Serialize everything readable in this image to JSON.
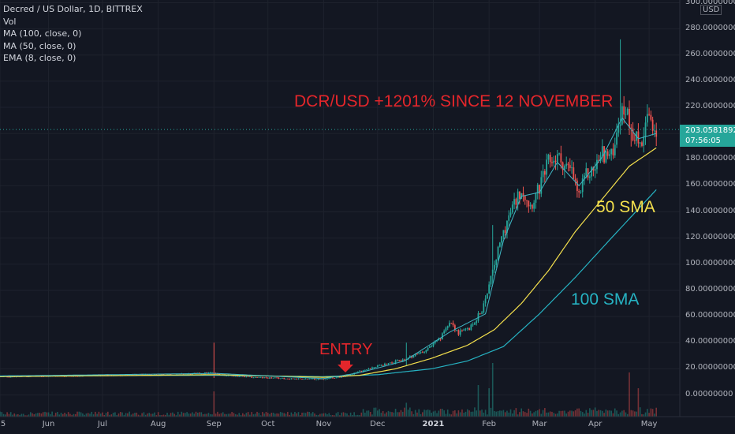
{
  "legend": {
    "symbol": "Decred / US Dollar, 1D, BITTREX",
    "vol": "Vol",
    "ma100": "MA (100, close, 0)",
    "ma50": "MA (50, close, 0)",
    "ema8": "EMA (8, close, 0)"
  },
  "annotations": {
    "title": "DCR/USD +1201% SINCE 12 NOVEMBER",
    "entry": "ENTRY",
    "sma50": "50 SMA",
    "sma100": "100 SMA"
  },
  "price_badge": {
    "price": "203.05818928",
    "countdown": "07:56:05"
  },
  "currency": "USD",
  "colors": {
    "background": "#131722",
    "up": "#26a69a",
    "down": "#ef5350",
    "ma50": "#f4e04d",
    "ma100": "#26b3c3",
    "ema8": "#3fb6c4",
    "annotation": "#e3262b"
  },
  "chart_data": {
    "type": "candlestick",
    "ylim": [
      0,
      300
    ],
    "yticks": [
      "300.00000000",
      "280.00000000",
      "260.00000000",
      "240.00000000",
      "220.00000000",
      "200.00000000",
      "180.00000000",
      "160.00000000",
      "140.00000000",
      "120.00000000",
      "100.00000000",
      "80.00000000",
      "60.00000000",
      "40.00000000",
      "20.00000000",
      "0.00000000"
    ],
    "yticks_values": [
      300,
      280,
      260,
      240,
      220,
      200,
      180,
      160,
      140,
      120,
      100,
      80,
      60,
      40,
      20,
      0
    ],
    "xticks": [
      {
        "label": "5",
        "day": 0
      },
      {
        "label": "Jun",
        "day": 27
      },
      {
        "label": "Jul",
        "day": 57
      },
      {
        "label": "Aug",
        "day": 88
      },
      {
        "label": "Sep",
        "day": 119
      },
      {
        "label": "Oct",
        "day": 149
      },
      {
        "label": "Nov",
        "day": 180
      },
      {
        "label": "Dec",
        "day": 210
      },
      {
        "label": "2021",
        "day": 241,
        "major": true
      },
      {
        "label": "Feb",
        "day": 272
      },
      {
        "label": "Mar",
        "day": 300
      },
      {
        "label": "Apr",
        "day": 331
      },
      {
        "label": "May",
        "day": 361
      }
    ],
    "last_day": 365,
    "close_keypoints": [
      [
        0,
        14
      ],
      [
        30,
        14.5
      ],
      [
        60,
        15
      ],
      [
        90,
        15.5
      ],
      [
        105,
        16
      ],
      [
        118,
        17
      ],
      [
        125,
        15
      ],
      [
        140,
        13.5
      ],
      [
        160,
        12.5
      ],
      [
        180,
        12
      ],
      [
        190,
        14
      ],
      [
        200,
        18
      ],
      [
        215,
        24
      ],
      [
        225,
        27
      ],
      [
        235,
        33
      ],
      [
        245,
        43
      ],
      [
        250,
        57
      ],
      [
        255,
        47
      ],
      [
        262,
        52
      ],
      [
        268,
        65
      ],
      [
        274,
        95
      ],
      [
        280,
        125
      ],
      [
        285,
        143
      ],
      [
        290,
        158
      ],
      [
        295,
        145
      ],
      [
        300,
        158
      ],
      [
        305,
        178
      ],
      [
        310,
        182
      ],
      [
        318,
        170
      ],
      [
        322,
        152
      ],
      [
        326,
        168
      ],
      [
        330,
        172
      ],
      [
        335,
        185
      ],
      [
        340,
        182
      ],
      [
        344,
        210
      ],
      [
        348,
        220
      ],
      [
        352,
        200
      ],
      [
        356,
        192
      ],
      [
        360,
        210
      ],
      [
        364,
        200
      ],
      [
        365,
        203
      ]
    ],
    "ma50_keypoints": [
      [
        0,
        14
      ],
      [
        120,
        15.5
      ],
      [
        180,
        13.5
      ],
      [
        200,
        15
      ],
      [
        220,
        20
      ],
      [
        240,
        28
      ],
      [
        260,
        38
      ],
      [
        275,
        50
      ],
      [
        290,
        70
      ],
      [
        305,
        95
      ],
      [
        320,
        125
      ],
      [
        335,
        150
      ],
      [
        350,
        175
      ],
      [
        365,
        189
      ]
    ],
    "ma100_keypoints": [
      [
        0,
        14.5
      ],
      [
        120,
        15
      ],
      [
        180,
        14
      ],
      [
        210,
        15.5
      ],
      [
        240,
        20
      ],
      [
        260,
        26
      ],
      [
        280,
        37
      ],
      [
        300,
        62
      ],
      [
        320,
        90
      ],
      [
        340,
        120
      ],
      [
        365,
        157
      ]
    ],
    "ema8_keypoints": [
      [
        0,
        14.5
      ],
      [
        120,
        16.5
      ],
      [
        180,
        12.5
      ],
      [
        200,
        17
      ],
      [
        225,
        26
      ],
      [
        250,
        48
      ],
      [
        270,
        62
      ],
      [
        280,
        118
      ],
      [
        290,
        152
      ],
      [
        300,
        155
      ],
      [
        310,
        178
      ],
      [
        322,
        160
      ],
      [
        335,
        182
      ],
      [
        346,
        212
      ],
      [
        355,
        196
      ],
      [
        365,
        200
      ]
    ],
    "volume_spikes": [
      [
        119,
        0.4
      ],
      [
        226,
        0.22
      ],
      [
        272,
        0.45
      ],
      [
        274,
        0.85
      ],
      [
        266,
        0.5
      ],
      [
        350,
        0.7
      ],
      [
        355,
        0.45
      ]
    ],
    "spike_candles": [
      [
        119,
        40,
        13
      ],
      [
        345,
        272,
        200
      ],
      [
        351,
        112,
        190
      ],
      [
        274,
        130,
        85
      ],
      [
        226,
        40,
        22
      ]
    ]
  }
}
